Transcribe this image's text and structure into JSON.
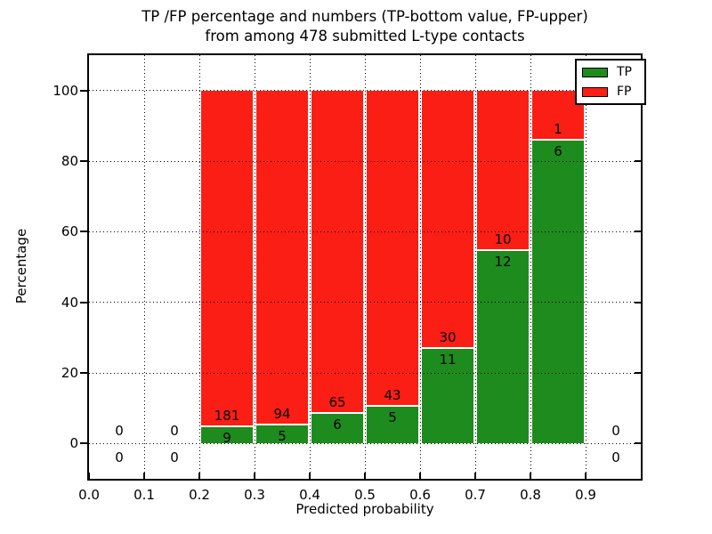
{
  "title": {
    "line1": "TP /FP percentage and numbers (TP-bottom value, FP-upper)",
    "line2": "from among 478 submitted L-type contacts"
  },
  "chart_data": {
    "type": "bar",
    "stacked": true,
    "normalized": "each bin scaled to 100%",
    "title": "TP /FP percentage and numbers (TP-bottom value, FP-upper) from among 478 submitted L-type contacts",
    "xlabel": "Predicted probability",
    "ylabel": "Percentage",
    "xlim": [
      0.0,
      1.0
    ],
    "ylim": [
      -10,
      110
    ],
    "xticks": [
      "0.0",
      "0.1",
      "0.2",
      "0.3",
      "0.4",
      "0.5",
      "0.6",
      "0.7",
      "0.8",
      "0.9"
    ],
    "yticks": [
      "0",
      "20",
      "40",
      "60",
      "80",
      "100"
    ],
    "grid": "dotted-black-on-top",
    "total_submitted": 478,
    "colors": {
      "tp": "#1e8b1e",
      "fp": "#fb1e15"
    },
    "legend": {
      "position": "upper right",
      "entries": [
        {
          "label": "TP",
          "color": "#1e8b1e"
        },
        {
          "label": "FP",
          "color": "#fb1e15"
        }
      ]
    },
    "bins": [
      {
        "range": [
          0.0,
          0.1
        ],
        "tp": 0,
        "fp": 0
      },
      {
        "range": [
          0.1,
          0.2
        ],
        "tp": 0,
        "fp": 0
      },
      {
        "range": [
          0.2,
          0.3
        ],
        "tp": 9,
        "fp": 181
      },
      {
        "range": [
          0.3,
          0.4
        ],
        "tp": 5,
        "fp": 94
      },
      {
        "range": [
          0.4,
          0.5
        ],
        "tp": 6,
        "fp": 65
      },
      {
        "range": [
          0.5,
          0.6
        ],
        "tp": 5,
        "fp": 43
      },
      {
        "range": [
          0.6,
          0.7
        ],
        "tp": 11,
        "fp": 30
      },
      {
        "range": [
          0.7,
          0.8
        ],
        "tp": 12,
        "fp": 10
      },
      {
        "range": [
          0.8,
          0.9
        ],
        "tp": 6,
        "fp": 1
      },
      {
        "range": [
          0.9,
          1.0
        ],
        "tp": 0,
        "fp": 0
      }
    ]
  }
}
